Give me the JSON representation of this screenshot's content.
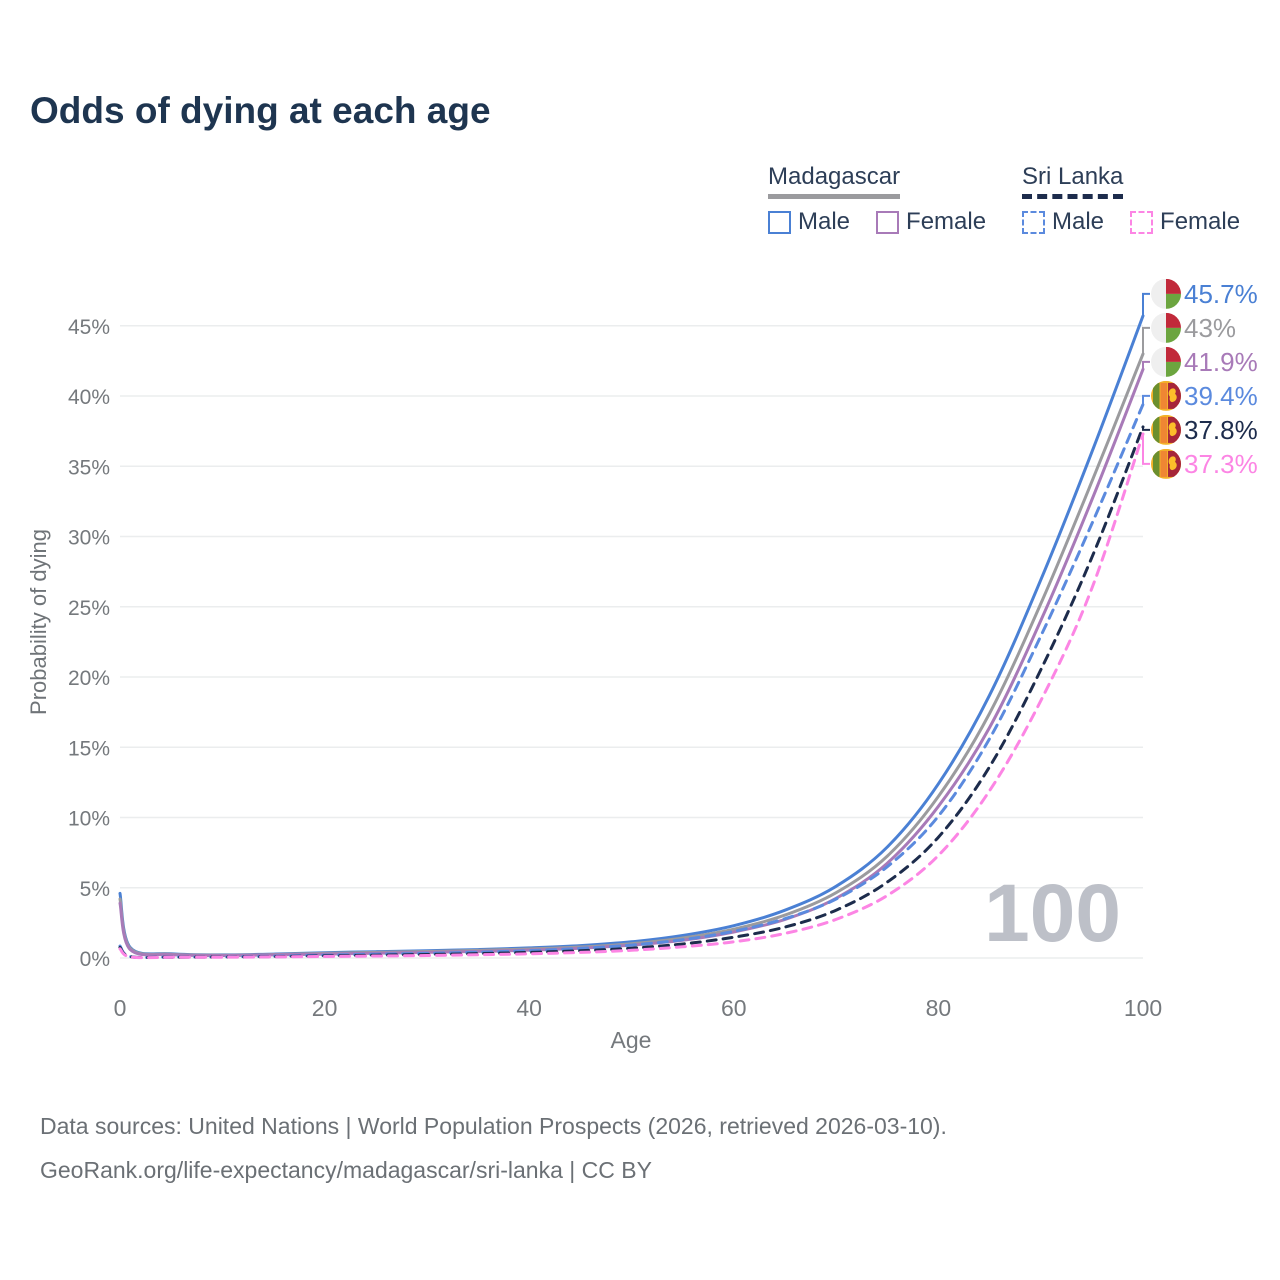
{
  "title": "Odds of dying at each age",
  "legend": {
    "groups": [
      {
        "country": "Madagascar",
        "underline_style": "solid",
        "underline_color": "#9b9b9e",
        "items": [
          {
            "label": "Male",
            "color": "#4a80d4",
            "style": "solid"
          },
          {
            "label": "Female",
            "color": "#a87ab8",
            "style": "solid"
          }
        ]
      },
      {
        "country": "Sri Lanka",
        "underline_style": "dashed",
        "underline_color": "#1d2c4c",
        "items": [
          {
            "label": "Male",
            "color": "#5b8ade",
            "style": "dashed"
          },
          {
            "label": "Female",
            "color": "#fc85e4",
            "style": "dashed"
          }
        ]
      }
    ]
  },
  "chart_data": {
    "type": "line",
    "title": "Odds of dying at each age",
    "xlabel": "Age",
    "ylabel": "Probability of dying",
    "watermark": "100",
    "xlim": [
      0,
      100
    ],
    "ylim": [
      0,
      47
    ],
    "grid": true,
    "legend_position": "top-right",
    "x_ticks": [
      0,
      20,
      40,
      60,
      80,
      100
    ],
    "y_tick_values": [
      0,
      5,
      10,
      15,
      20,
      25,
      30,
      35,
      40,
      45
    ],
    "y_tick_labels": [
      "0%",
      "5%",
      "10%",
      "15%",
      "20%",
      "25%",
      "30%",
      "35%",
      "40%",
      "45%"
    ],
    "ages": [
      0,
      1,
      5,
      10,
      15,
      20,
      25,
      30,
      35,
      40,
      45,
      50,
      55,
      60,
      65,
      70,
      75,
      80,
      85,
      90,
      95,
      100
    ],
    "series": [
      {
        "name": "Madagascar Male",
        "country": "Madagascar",
        "sex": "Male",
        "style": "solid",
        "color": "#4a80d4",
        "flag": "madagascar",
        "end_label": "45.7%",
        "values": [
          4.6,
          0.75,
          0.3,
          0.22,
          0.28,
          0.38,
          0.45,
          0.52,
          0.6,
          0.72,
          0.88,
          1.15,
          1.6,
          2.3,
          3.4,
          5.1,
          7.9,
          12.4,
          18.7,
          26.9,
          36.0,
          45.7
        ]
      },
      {
        "name": "Madagascar Both sexes",
        "country": "Madagascar",
        "sex": "Both",
        "style": "solid",
        "color": "#9b9b9e",
        "flag": "madagascar",
        "end_label": "43%",
        "values": [
          4.2,
          0.68,
          0.27,
          0.2,
          0.25,
          0.33,
          0.4,
          0.46,
          0.54,
          0.64,
          0.78,
          1.02,
          1.42,
          2.05,
          3.05,
          4.65,
          7.25,
          11.5,
          17.4,
          25.2,
          33.9,
          43.0
        ]
      },
      {
        "name": "Madagascar Female",
        "country": "Madagascar",
        "sex": "Female",
        "style": "solid",
        "color": "#a87ab8",
        "flag": "madagascar",
        "end_label": "41.9%",
        "values": [
          3.9,
          0.6,
          0.24,
          0.18,
          0.22,
          0.28,
          0.34,
          0.4,
          0.47,
          0.56,
          0.7,
          0.92,
          1.26,
          1.85,
          2.75,
          4.25,
          6.75,
          10.8,
          16.4,
          24.0,
          32.6,
          41.9
        ]
      },
      {
        "name": "Sri Lanka Male",
        "country": "Sri Lanka",
        "sex": "Male",
        "style": "dashed",
        "color": "#5b8ade",
        "flag": "sri-lanka",
        "end_label": "39.4%",
        "values": [
          0.85,
          0.1,
          0.07,
          0.08,
          0.13,
          0.2,
          0.27,
          0.33,
          0.41,
          0.52,
          0.68,
          0.92,
          1.3,
          1.9,
          2.8,
          4.2,
          6.5,
          10.1,
          15.6,
          22.9,
          30.9,
          39.4
        ]
      },
      {
        "name": "Sri Lanka Both sexes",
        "country": "Sri Lanka",
        "sex": "Both",
        "style": "dashed",
        "color": "#1d2c4c",
        "flag": "sri-lanka",
        "end_label": "37.8%",
        "values": [
          0.75,
          0.09,
          0.06,
          0.07,
          0.1,
          0.15,
          0.2,
          0.25,
          0.31,
          0.4,
          0.52,
          0.7,
          1.0,
          1.48,
          2.2,
          3.4,
          5.4,
          8.6,
          13.6,
          20.5,
          28.5,
          37.8
        ]
      },
      {
        "name": "Sri Lanka Female",
        "country": "Sri Lanka",
        "sex": "Female",
        "style": "dashed",
        "color": "#fc85e4",
        "flag": "sri-lanka",
        "end_label": "37.3%",
        "values": [
          0.65,
          0.08,
          0.05,
          0.06,
          0.08,
          0.11,
          0.14,
          0.18,
          0.23,
          0.3,
          0.4,
          0.55,
          0.8,
          1.15,
          1.75,
          2.75,
          4.45,
          7.3,
          11.9,
          18.3,
          26.3,
          37.3
        ]
      }
    ]
  },
  "colors": {
    "title": "#1e3550",
    "axis_text": "#75797d",
    "grid": "#ebedee",
    "watermark": "#bdc0c8",
    "footer_text": "#6b7075"
  },
  "footer": {
    "line1": "Data sources: United Nations | World Population Prospects (2026, retrieved 2026-03-10).",
    "line2": "GeoRank.org/life-expectancy/madagascar/sri-lanka | CC BY"
  }
}
